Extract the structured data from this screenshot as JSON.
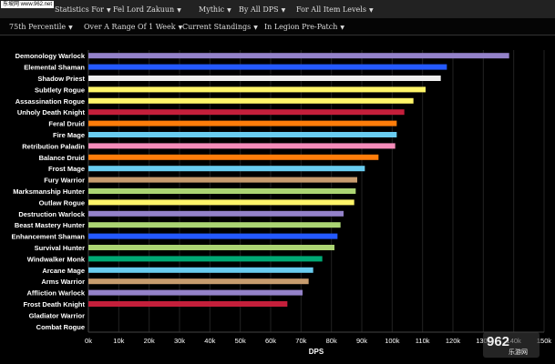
{
  "topbar": {
    "items": [
      {
        "label": "Statistics For"
      },
      {
        "label": "Fel Lord Zakuun"
      },
      {
        "label": "Mythic"
      },
      {
        "label": "By All DPS"
      },
      {
        "label": "For All Item Levels"
      }
    ]
  },
  "filters": {
    "items": [
      {
        "label": "75th Percentile"
      },
      {
        "label": "Over A Range Of 1 Week"
      },
      {
        "label": "Current Standings"
      },
      {
        "label": "In Legion Pre-Patch"
      }
    ]
  },
  "watermark": {
    "tl": "东坡网 www.962.net",
    "br_big": "962",
    "br_small": "乐游网"
  },
  "chart_data": {
    "type": "bar",
    "orientation": "horizontal",
    "xlabel": "DPS",
    "xlim": [
      0,
      150000
    ],
    "xticks": [
      0,
      10000,
      20000,
      30000,
      40000,
      50000,
      60000,
      70000,
      80000,
      90000,
      100000,
      110000,
      120000,
      130000,
      140000,
      150000
    ],
    "xtick_labels": [
      "0k",
      "10k",
      "20k",
      "30k",
      "40k",
      "50k",
      "60k",
      "70k",
      "80k",
      "90k",
      "100k",
      "110k",
      "120k",
      "130k",
      "140k",
      "150k"
    ],
    "grid": true,
    "categories": [
      {
        "name": "Demonology Warlock",
        "value": 138500,
        "color": "#9482C9"
      },
      {
        "name": "Elemental Shaman",
        "value": 118000,
        "color": "#2459FF"
      },
      {
        "name": "Shadow Priest",
        "value": 116000,
        "color": "#EEEEEE"
      },
      {
        "name": "Subtlety Rogue",
        "value": 111000,
        "color": "#FFF569"
      },
      {
        "name": "Assassination Rogue",
        "value": 107000,
        "color": "#FFF569"
      },
      {
        "name": "Unholy Death Knight",
        "value": 104000,
        "color": "#C41F3B"
      },
      {
        "name": "Feral Druid",
        "value": 101500,
        "color": "#FF7D0A"
      },
      {
        "name": "Fire Mage",
        "value": 101500,
        "color": "#69CCF0"
      },
      {
        "name": "Retribution Paladin",
        "value": 101000,
        "color": "#F58CBA"
      },
      {
        "name": "Balance Druid",
        "value": 95500,
        "color": "#FF7D0A"
      },
      {
        "name": "Frost Mage",
        "value": 91000,
        "color": "#69CCF0"
      },
      {
        "name": "Fury Warrior",
        "value": 88500,
        "color": "#C79C6E"
      },
      {
        "name": "Marksmanship Hunter",
        "value": 88000,
        "color": "#ABD473"
      },
      {
        "name": "Outlaw Rogue",
        "value": 87500,
        "color": "#FFF569"
      },
      {
        "name": "Destruction Warlock",
        "value": 84000,
        "color": "#9482C9"
      },
      {
        "name": "Beast Mastery Hunter",
        "value": 83000,
        "color": "#ABD473"
      },
      {
        "name": "Enhancement Shaman",
        "value": 82000,
        "color": "#2459FF"
      },
      {
        "name": "Survival Hunter",
        "value": 81000,
        "color": "#ABD473"
      },
      {
        "name": "Windwalker Monk",
        "value": 77000,
        "color": "#00A874"
      },
      {
        "name": "Arcane Mage",
        "value": 74000,
        "color": "#69CCF0"
      },
      {
        "name": "Arms Warrior",
        "value": 72500,
        "color": "#C79C6E"
      },
      {
        "name": "Affliction Warlock",
        "value": 70500,
        "color": "#9482C9"
      },
      {
        "name": "Frost Death Knight",
        "value": 65500,
        "color": "#C41F3B"
      },
      {
        "name": "Gladiator Warrior",
        "value": 0,
        "color": "#C79C6E"
      },
      {
        "name": "Combat Rogue",
        "value": 0,
        "color": "#FFF569"
      }
    ]
  }
}
